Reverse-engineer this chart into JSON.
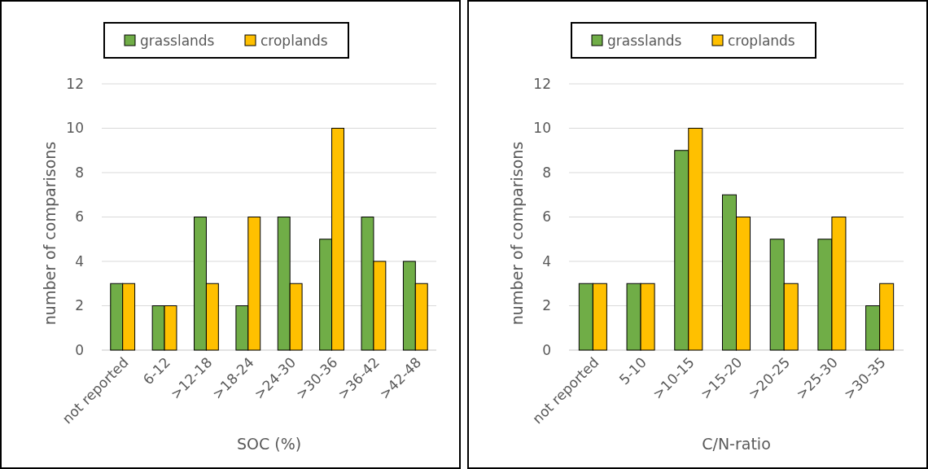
{
  "chart_data": [
    {
      "type": "bar",
      "xlabel": "SOC (%)",
      "ylabel": "number of comparisons",
      "categories": [
        "not reported",
        "6-12",
        ">12-18",
        ">18-24",
        ">24-30",
        ">30-36",
        ">36-42",
        ">42-48"
      ],
      "series": [
        {
          "name": "grasslands",
          "color": "#70ad47",
          "values": [
            3,
            2,
            6,
            2,
            6,
            5,
            6,
            4
          ]
        },
        {
          "name": "croplands",
          "color": "#ffc000",
          "values": [
            3,
            2,
            3,
            6,
            3,
            10,
            4,
            3
          ]
        }
      ],
      "ylim": [
        0,
        12
      ],
      "yticks": [
        0,
        2,
        4,
        6,
        8,
        10,
        12
      ],
      "grid": "y",
      "legend": "top"
    },
    {
      "type": "bar",
      "xlabel": "C/N-ratio",
      "ylabel": "number of comparisons",
      "categories": [
        "not reported",
        "5-10",
        ">10-15",
        ">15-20",
        ">20-25",
        ">25-30",
        ">30-35"
      ],
      "series": [
        {
          "name": "grasslands",
          "color": "#70ad47",
          "values": [
            3,
            3,
            9,
            7,
            5,
            5,
            2
          ]
        },
        {
          "name": "croplands",
          "color": "#ffc000",
          "values": [
            3,
            3,
            10,
            6,
            3,
            6,
            3
          ]
        }
      ],
      "ylim": [
        0,
        12
      ],
      "yticks": [
        0,
        2,
        4,
        6,
        8,
        10,
        12
      ],
      "grid": "y",
      "legend": "top"
    }
  ]
}
